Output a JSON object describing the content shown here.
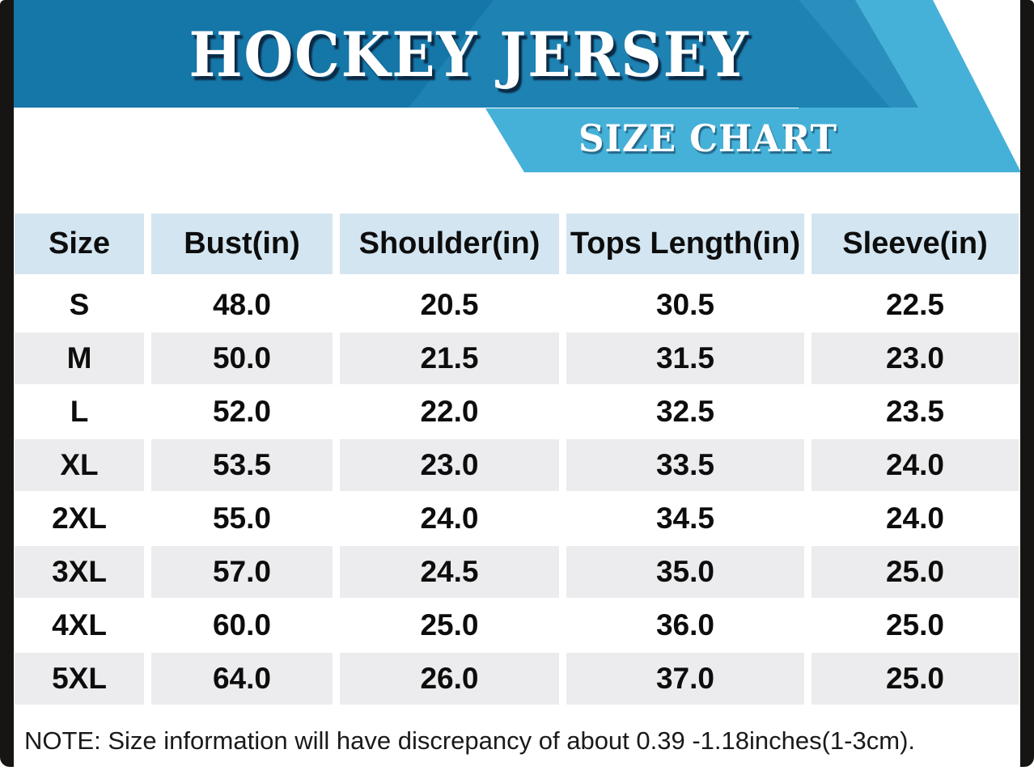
{
  "header": {
    "title": "HOCKEY JERSEY",
    "subtitle": "SIZE CHART"
  },
  "chart_data": {
    "type": "table",
    "title": "HOCKEY JERSEY SIZE CHART",
    "columns": [
      "Size",
      "Bust(in)",
      "Shoulder(in)",
      "Tops Length(in)",
      "Sleeve(in)"
    ],
    "rows": [
      [
        "S",
        "48.0",
        "20.5",
        "30.5",
        "22.5"
      ],
      [
        "M",
        "50.0",
        "21.5",
        "31.5",
        "23.0"
      ],
      [
        "L",
        "52.0",
        "22.0",
        "32.5",
        "23.5"
      ],
      [
        "XL",
        "53.5",
        "23.0",
        "33.5",
        "24.0"
      ],
      [
        "2XL",
        "55.0",
        "24.0",
        "34.5",
        "24.0"
      ],
      [
        "3XL",
        "57.0",
        "24.5",
        "35.0",
        "25.0"
      ],
      [
        "4XL",
        "60.0",
        "25.0",
        "36.0",
        "25.0"
      ],
      [
        "5XL",
        "64.0",
        "26.0",
        "37.0",
        "25.0"
      ]
    ],
    "units": "inches"
  },
  "note": "NOTE: Size information will have discrepancy of about 0.39 -1.18inches(1-3cm).",
  "colors": {
    "banner_blue": "#1576a8",
    "banner_chevron_blue": "#1e82b3",
    "arrow_blue": "#2a8fbd",
    "size_chart_band_blue": "#45b1d8",
    "header_cell_blue": "#d3e5f0",
    "alt_row_gray": "#ececee",
    "side_border_black": "#171513",
    "text_black": "#0d0d0d",
    "title_white": "#ffffff"
  }
}
